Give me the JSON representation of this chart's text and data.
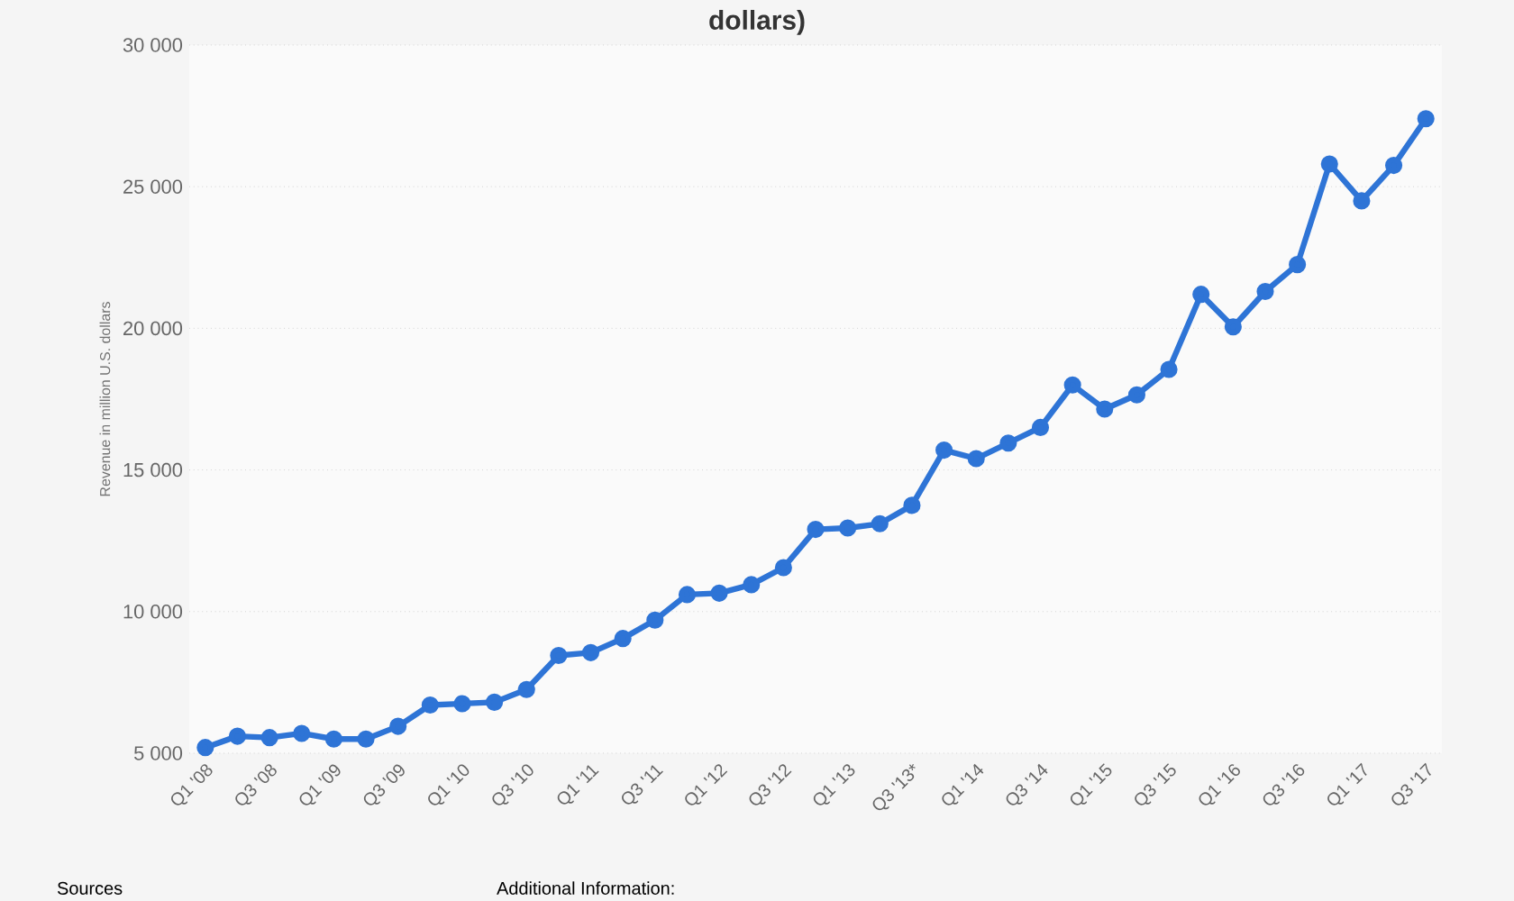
{
  "chart_data": {
    "type": "line",
    "title": "dollars)",
    "ylabel": "Revenue in million U.S. dollars",
    "categories": [
      "Q1 '08",
      null,
      "Q3 '08",
      null,
      "Q1 '09",
      null,
      "Q3 '09",
      null,
      "Q1 '10",
      null,
      "Q3 '10",
      null,
      "Q1 '11",
      null,
      "Q3 '11",
      null,
      "Q1 '12",
      null,
      "Q3 '12",
      null,
      "Q1 '13",
      null,
      "Q3 '13*",
      null,
      "Q1 '14",
      null,
      "Q3 '14",
      null,
      "Q1 '15",
      null,
      "Q3 '15",
      null,
      "Q1 '16",
      null,
      "Q3 '16",
      null,
      "Q1 '17",
      null,
      "Q3 '17"
    ],
    "values": [
      5200,
      5600,
      5550,
      5700,
      5500,
      5500,
      5950,
      6700,
      6750,
      6800,
      7250,
      8450,
      8550,
      9050,
      9700,
      10600,
      10650,
      10950,
      11550,
      12900,
      12950,
      13100,
      13750,
      15700,
      15400,
      15950,
      16500,
      18000,
      17150,
      17650,
      18550,
      21200,
      20050,
      21300,
      22250,
      25800,
      24500,
      25750,
      27400
    ],
    "color": "#2e74d6",
    "ylim": [
      5000,
      30000
    ],
    "yticks": [
      {
        "value": 5000,
        "label": "5 000"
      },
      {
        "value": 10000,
        "label": "10 000"
      },
      {
        "value": 15000,
        "label": "15 000"
      },
      {
        "value": 20000,
        "label": "20 000"
      },
      {
        "value": 25000,
        "label": "25 000"
      },
      {
        "value": 30000,
        "label": "30 000"
      }
    ],
    "grid": "y",
    "marker": "circle",
    "line_style": "solid",
    "annotations": [
      "Sources",
      "Additional Information:"
    ]
  }
}
